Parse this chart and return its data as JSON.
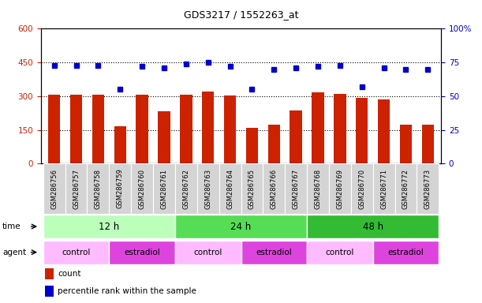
{
  "title": "GDS3217 / 1552263_at",
  "samples": [
    "GSM286756",
    "GSM286757",
    "GSM286758",
    "GSM286759",
    "GSM286760",
    "GSM286761",
    "GSM286762",
    "GSM286763",
    "GSM286764",
    "GSM286765",
    "GSM286766",
    "GSM286767",
    "GSM286768",
    "GSM286769",
    "GSM286770",
    "GSM286771",
    "GSM286772",
    "GSM286773"
  ],
  "count_values": [
    308,
    308,
    305,
    165,
    308,
    233,
    308,
    320,
    302,
    158,
    172,
    238,
    318,
    310,
    293,
    285,
    172,
    175
  ],
  "percentile_values": [
    73,
    73,
    73,
    55,
    72,
    71,
    74,
    75,
    72,
    55,
    70,
    71,
    72,
    73,
    57,
    71,
    70,
    70
  ],
  "left_ylim": [
    0,
    600
  ],
  "right_ylim": [
    0,
    100
  ],
  "left_yticks": [
    0,
    150,
    300,
    450,
    600
  ],
  "right_yticks": [
    0,
    25,
    50,
    75,
    100
  ],
  "right_yticklabels": [
    "0",
    "25",
    "50",
    "75",
    "100%"
  ],
  "bar_color": "#cc2200",
  "dot_color": "#0000cc",
  "time_groups": [
    {
      "label": "12 h",
      "start": 0,
      "end": 6,
      "color": "#bbffbb"
    },
    {
      "label": "24 h",
      "start": 6,
      "end": 12,
      "color": "#55dd55"
    },
    {
      "label": "48 h",
      "start": 12,
      "end": 18,
      "color": "#33bb33"
    }
  ],
  "agent_groups": [
    {
      "label": "control",
      "start": 0,
      "end": 3,
      "color": "#ffbbff"
    },
    {
      "label": "estradiol",
      "start": 3,
      "end": 6,
      "color": "#dd44dd"
    },
    {
      "label": "control",
      "start": 6,
      "end": 9,
      "color": "#ffbbff"
    },
    {
      "label": "estradiol",
      "start": 9,
      "end": 12,
      "color": "#dd44dd"
    },
    {
      "label": "control",
      "start": 12,
      "end": 15,
      "color": "#ffbbff"
    },
    {
      "label": "estradiol",
      "start": 15,
      "end": 18,
      "color": "#dd44dd"
    }
  ],
  "legend_count_label": "count",
  "legend_pct_label": "percentile rank within the sample",
  "grid_yticks": [
    150,
    300,
    450
  ]
}
